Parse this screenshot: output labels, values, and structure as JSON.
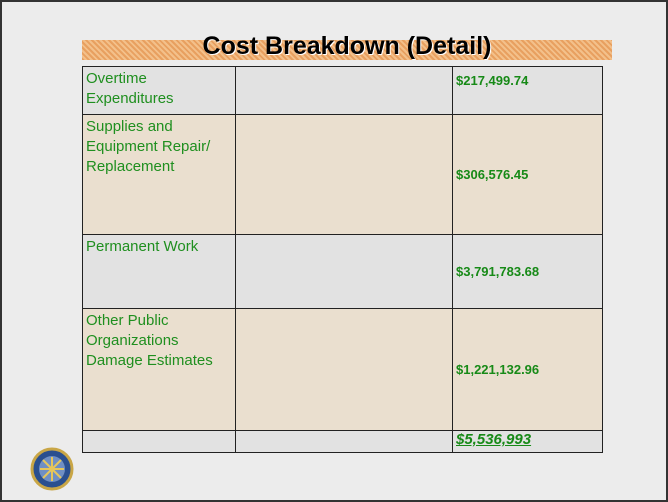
{
  "title": "Cost Breakdown (Detail)",
  "table": {
    "rows": [
      {
        "label": "Overtime Expenditures",
        "amount": "$217,499.74"
      },
      {
        "label": "Supplies and Equipment Repair/ Replacement",
        "amount": "$306,576.45"
      },
      {
        "label": "Permanent Work",
        "amount": "$3,791,783.68"
      },
      {
        "label": "Other Public Organizations Damage Estimates",
        "amount": "$1,221,132.96"
      }
    ],
    "total": "$5,536,993"
  }
}
